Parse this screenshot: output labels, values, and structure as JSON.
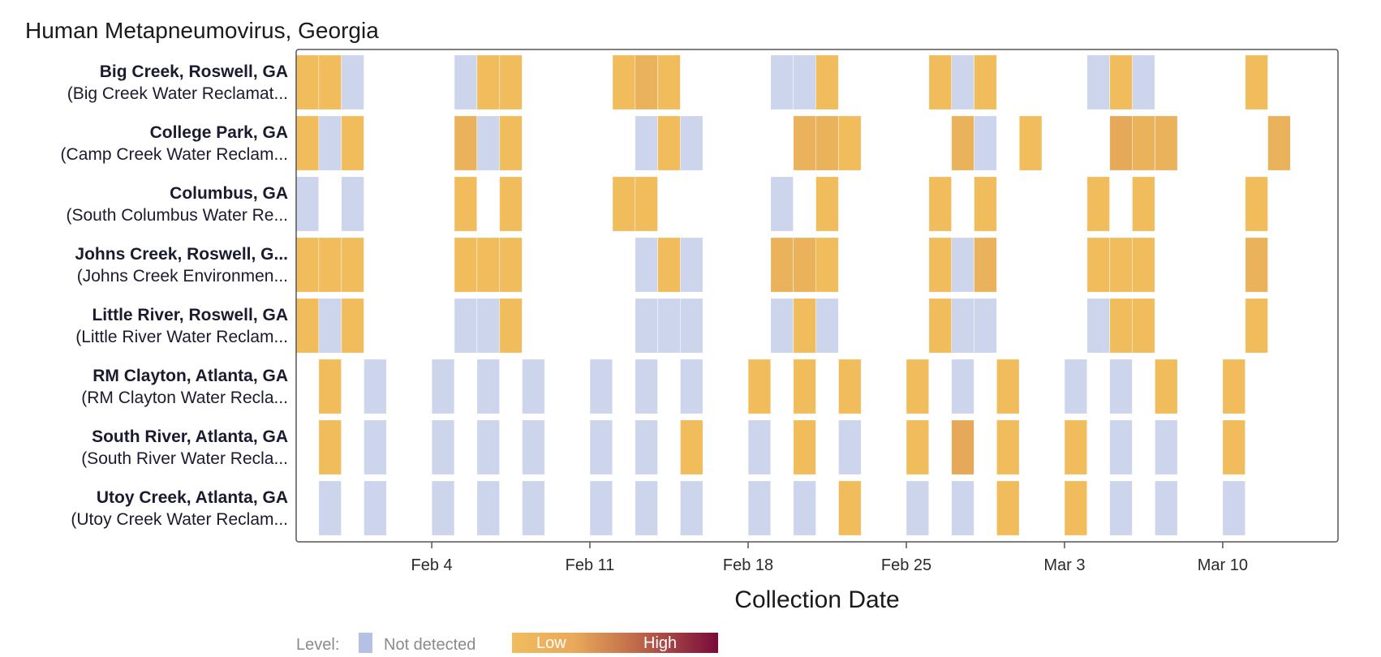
{
  "chart_data": {
    "type": "heatmap",
    "title": "Human Metapneumovirus, Georgia",
    "xlabel": "Collection Date",
    "ylabel": "",
    "x_range": [
      "2024-01-29",
      "2024-03-16"
    ],
    "x_ticks": [
      {
        "date": "2024-02-04",
        "label": "Feb 4"
      },
      {
        "date": "2024-02-11",
        "label": "Feb 11"
      },
      {
        "date": "2024-02-18",
        "label": "Feb 18"
      },
      {
        "date": "2024-02-25",
        "label": "Feb 25"
      },
      {
        "date": "2024-03-03",
        "label": "Mar 3"
      },
      {
        "date": "2024-03-10",
        "label": "Mar 10"
      }
    ],
    "colors": {
      "not_detected": "#cdd5ec",
      "low": "#f1bc5c",
      "low_mid": "#eab25a",
      "mid": "#e6a95a",
      "high": "#7a0a3a",
      "frame": "#555555"
    },
    "legend": {
      "title": "Level:",
      "not_detected_label": "Not detected",
      "low_label": "Low",
      "high_label": "High"
    },
    "series": [
      {
        "name": "Big Creek, Roswell, GA",
        "subtitle": "(Big Creek Water Reclamat...",
        "samples": [
          [
            "2024-01-29",
            "low"
          ],
          [
            "2024-01-30",
            "low"
          ],
          [
            "2024-01-31",
            "nd"
          ],
          [
            "2024-02-05",
            "nd"
          ],
          [
            "2024-02-06",
            "low"
          ],
          [
            "2024-02-07",
            "low"
          ],
          [
            "2024-02-12",
            "low"
          ],
          [
            "2024-02-13",
            "low_mid"
          ],
          [
            "2024-02-14",
            "low"
          ],
          [
            "2024-02-19",
            "nd"
          ],
          [
            "2024-02-20",
            "nd"
          ],
          [
            "2024-02-21",
            "low"
          ],
          [
            "2024-02-26",
            "low"
          ],
          [
            "2024-02-27",
            "nd"
          ],
          [
            "2024-02-28",
            "low"
          ],
          [
            "2024-03-04",
            "nd"
          ],
          [
            "2024-03-05",
            "low"
          ],
          [
            "2024-03-06",
            "nd"
          ],
          [
            "2024-03-11",
            "low"
          ]
        ]
      },
      {
        "name": "College Park, GA",
        "subtitle": "(Camp Creek Water Reclam...",
        "samples": [
          [
            "2024-01-29",
            "low"
          ],
          [
            "2024-01-30",
            "nd"
          ],
          [
            "2024-01-31",
            "low"
          ],
          [
            "2024-02-05",
            "low_mid"
          ],
          [
            "2024-02-06",
            "nd"
          ],
          [
            "2024-02-07",
            "low"
          ],
          [
            "2024-02-13",
            "nd"
          ],
          [
            "2024-02-14",
            "low"
          ],
          [
            "2024-02-15",
            "nd"
          ],
          [
            "2024-02-20",
            "low_mid"
          ],
          [
            "2024-02-21",
            "low_mid"
          ],
          [
            "2024-02-22",
            "low"
          ],
          [
            "2024-02-27",
            "low_mid"
          ],
          [
            "2024-02-28",
            "nd"
          ],
          [
            "2024-03-01",
            "low"
          ],
          [
            "2024-03-05",
            "mid"
          ],
          [
            "2024-03-06",
            "low_mid"
          ],
          [
            "2024-03-07",
            "low_mid"
          ],
          [
            "2024-03-12",
            "low_mid"
          ]
        ]
      },
      {
        "name": "Columbus, GA",
        "subtitle": "(South Columbus Water Re...",
        "samples": [
          [
            "2024-01-29",
            "nd"
          ],
          [
            "2024-01-31",
            "nd"
          ],
          [
            "2024-02-05",
            "low"
          ],
          [
            "2024-02-07",
            "low"
          ],
          [
            "2024-02-12",
            "low"
          ],
          [
            "2024-02-13",
            "low"
          ],
          [
            "2024-02-19",
            "nd"
          ],
          [
            "2024-02-21",
            "low"
          ],
          [
            "2024-02-26",
            "low"
          ],
          [
            "2024-02-28",
            "low"
          ],
          [
            "2024-03-04",
            "low"
          ],
          [
            "2024-03-06",
            "low"
          ],
          [
            "2024-03-11",
            "low"
          ]
        ]
      },
      {
        "name": "Johns Creek, Roswell, G...",
        "subtitle": "(Johns Creek Environmen...",
        "samples": [
          [
            "2024-01-29",
            "low"
          ],
          [
            "2024-01-30",
            "low"
          ],
          [
            "2024-01-31",
            "low"
          ],
          [
            "2024-02-05",
            "low"
          ],
          [
            "2024-02-06",
            "low"
          ],
          [
            "2024-02-07",
            "low"
          ],
          [
            "2024-02-13",
            "nd"
          ],
          [
            "2024-02-14",
            "low"
          ],
          [
            "2024-02-15",
            "nd"
          ],
          [
            "2024-02-19",
            "low_mid"
          ],
          [
            "2024-02-20",
            "low_mid"
          ],
          [
            "2024-02-21",
            "low"
          ],
          [
            "2024-02-26",
            "low"
          ],
          [
            "2024-02-27",
            "nd"
          ],
          [
            "2024-02-28",
            "low_mid"
          ],
          [
            "2024-03-04",
            "low"
          ],
          [
            "2024-03-05",
            "low"
          ],
          [
            "2024-03-06",
            "low"
          ],
          [
            "2024-03-11",
            "low_mid"
          ]
        ]
      },
      {
        "name": "Little River, Roswell, GA",
        "subtitle": "(Little River Water Reclam...",
        "samples": [
          [
            "2024-01-29",
            "low"
          ],
          [
            "2024-01-30",
            "nd"
          ],
          [
            "2024-01-31",
            "low"
          ],
          [
            "2024-02-05",
            "nd"
          ],
          [
            "2024-02-06",
            "nd"
          ],
          [
            "2024-02-07",
            "low"
          ],
          [
            "2024-02-13",
            "nd"
          ],
          [
            "2024-02-14",
            "nd"
          ],
          [
            "2024-02-15",
            "nd"
          ],
          [
            "2024-02-19",
            "nd"
          ],
          [
            "2024-02-20",
            "low"
          ],
          [
            "2024-02-21",
            "nd"
          ],
          [
            "2024-02-26",
            "low"
          ],
          [
            "2024-02-27",
            "nd"
          ],
          [
            "2024-02-28",
            "nd"
          ],
          [
            "2024-03-04",
            "nd"
          ],
          [
            "2024-03-05",
            "low"
          ],
          [
            "2024-03-06",
            "low"
          ],
          [
            "2024-03-11",
            "low"
          ]
        ]
      },
      {
        "name": "RM Clayton, Atlanta, GA",
        "subtitle": "(RM Clayton Water Recla...",
        "samples": [
          [
            "2024-01-30",
            "low"
          ],
          [
            "2024-02-01",
            "nd"
          ],
          [
            "2024-02-04",
            "nd"
          ],
          [
            "2024-02-06",
            "nd"
          ],
          [
            "2024-02-08",
            "nd"
          ],
          [
            "2024-02-11",
            "nd"
          ],
          [
            "2024-02-13",
            "nd"
          ],
          [
            "2024-02-15",
            "nd"
          ],
          [
            "2024-02-18",
            "low"
          ],
          [
            "2024-02-20",
            "low"
          ],
          [
            "2024-02-22",
            "low"
          ],
          [
            "2024-02-25",
            "low"
          ],
          [
            "2024-02-27",
            "nd"
          ],
          [
            "2024-02-29",
            "low"
          ],
          [
            "2024-03-03",
            "nd"
          ],
          [
            "2024-03-05",
            "nd"
          ],
          [
            "2024-03-07",
            "low"
          ],
          [
            "2024-03-10",
            "low"
          ]
        ]
      },
      {
        "name": "South River, Atlanta, GA",
        "subtitle": "(South River Water Recla...",
        "samples": [
          [
            "2024-01-30",
            "low"
          ],
          [
            "2024-02-01",
            "nd"
          ],
          [
            "2024-02-04",
            "nd"
          ],
          [
            "2024-02-06",
            "nd"
          ],
          [
            "2024-02-08",
            "nd"
          ],
          [
            "2024-02-11",
            "nd"
          ],
          [
            "2024-02-13",
            "nd"
          ],
          [
            "2024-02-15",
            "low"
          ],
          [
            "2024-02-18",
            "nd"
          ],
          [
            "2024-02-20",
            "low"
          ],
          [
            "2024-02-22",
            "nd"
          ],
          [
            "2024-02-25",
            "low"
          ],
          [
            "2024-02-27",
            "mid"
          ],
          [
            "2024-02-29",
            "low"
          ],
          [
            "2024-03-03",
            "low"
          ],
          [
            "2024-03-05",
            "nd"
          ],
          [
            "2024-03-07",
            "nd"
          ],
          [
            "2024-03-10",
            "low"
          ]
        ]
      },
      {
        "name": "Utoy Creek, Atlanta, GA",
        "subtitle": "(Utoy Creek Water Reclam...",
        "samples": [
          [
            "2024-01-30",
            "nd"
          ],
          [
            "2024-02-01",
            "nd"
          ],
          [
            "2024-02-04",
            "nd"
          ],
          [
            "2024-02-06",
            "nd"
          ],
          [
            "2024-02-08",
            "nd"
          ],
          [
            "2024-02-11",
            "nd"
          ],
          [
            "2024-02-13",
            "nd"
          ],
          [
            "2024-02-15",
            "nd"
          ],
          [
            "2024-02-18",
            "nd"
          ],
          [
            "2024-02-20",
            "nd"
          ],
          [
            "2024-02-22",
            "low"
          ],
          [
            "2024-02-25",
            "nd"
          ],
          [
            "2024-02-27",
            "nd"
          ],
          [
            "2024-02-29",
            "low"
          ],
          [
            "2024-03-03",
            "low"
          ],
          [
            "2024-03-05",
            "nd"
          ],
          [
            "2024-03-07",
            "nd"
          ],
          [
            "2024-03-10",
            "nd"
          ]
        ]
      }
    ]
  }
}
